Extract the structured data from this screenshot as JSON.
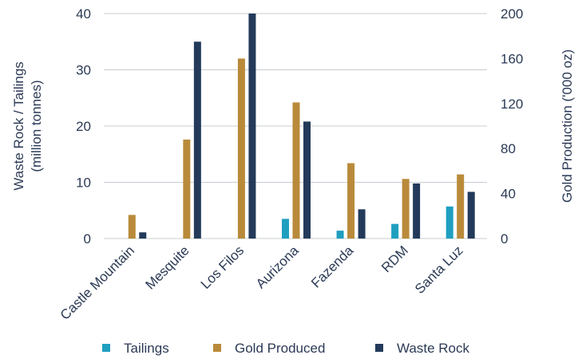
{
  "chart_data": {
    "type": "bar",
    "categories": [
      "Castle Mountain",
      "Mesquite",
      "Los Filos",
      "Aurizona",
      "Fazenda",
      "RDM",
      "Santa Luz"
    ],
    "series": [
      {
        "name": "Tailings",
        "axis": "left",
        "color": "#1f9fc0",
        "values": [
          0,
          0,
          0,
          3.5,
          1.4,
          2.6,
          5.7
        ]
      },
      {
        "name": "Gold Produced",
        "axis": "right",
        "color": "#b98a3a",
        "values": [
          21,
          88,
          160,
          121,
          67,
          53,
          57
        ]
      },
      {
        "name": "Waste Rock",
        "axis": "left",
        "color": "#233a5a",
        "values": [
          1.1,
          35,
          40,
          20.8,
          5.2,
          9.8,
          8.3
        ]
      }
    ],
    "yleft": {
      "label_line1": "Waste Rock / Tailings",
      "label_line2": "(million tonnes)",
      "ylim": [
        0,
        40
      ],
      "ticks": [
        "0",
        "10",
        "20",
        "30",
        "40"
      ]
    },
    "yright": {
      "label": "Gold Production ('000 oz)",
      "ylim": [
        0,
        200
      ],
      "ticks": [
        "0",
        "40",
        "80",
        "120",
        "160",
        "200"
      ]
    },
    "grid": true,
    "legend_position": "bottom",
    "colors": {
      "text": "#2b3a55",
      "grid": "#c8ccd1"
    }
  }
}
